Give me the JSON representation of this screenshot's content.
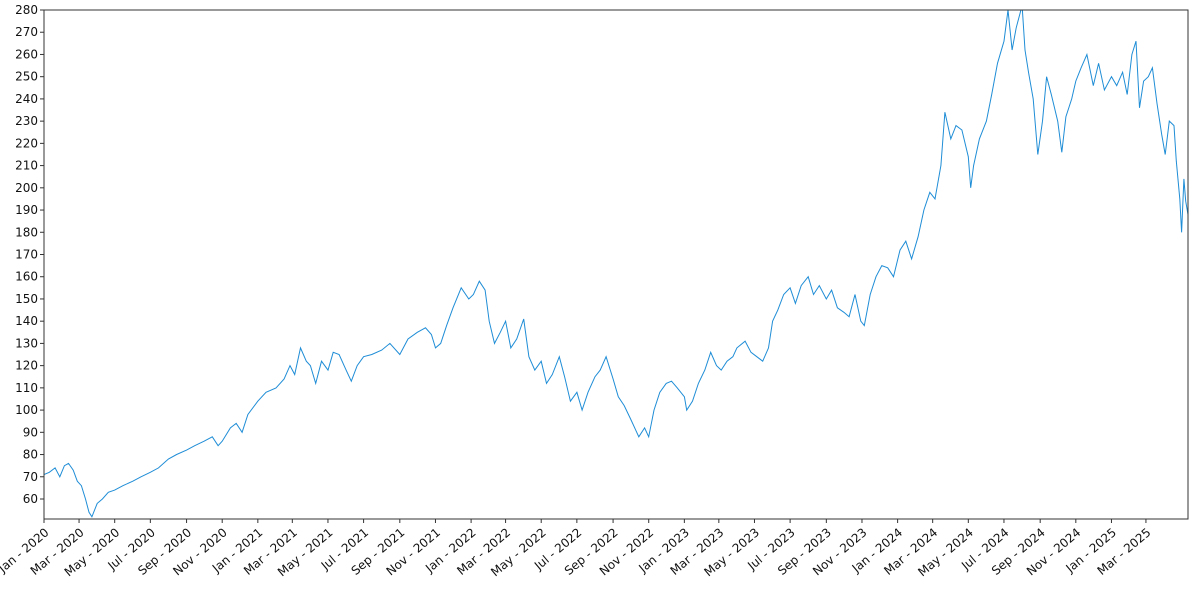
{
  "chart_data": {
    "type": "line",
    "title": "",
    "xlabel": "",
    "ylabel": "",
    "ylim": [
      51,
      280
    ],
    "yticks": [
      60,
      70,
      80,
      90,
      100,
      110,
      120,
      130,
      140,
      150,
      160,
      170,
      180,
      190,
      200,
      210,
      220,
      230,
      240,
      250,
      260,
      270,
      280
    ],
    "xlim": [
      "2020-01-01",
      "2025-05-12"
    ],
    "xticks": [
      {
        "date": "2020-01-01",
        "label": "Jan - 2020"
      },
      {
        "date": "2020-03-01",
        "label": "Mar - 2020"
      },
      {
        "date": "2020-05-01",
        "label": "May - 2020"
      },
      {
        "date": "2020-07-01",
        "label": "Jul - 2020"
      },
      {
        "date": "2020-09-01",
        "label": "Sep - 2020"
      },
      {
        "date": "2020-11-01",
        "label": "Nov - 2020"
      },
      {
        "date": "2021-01-01",
        "label": "Jan - 2021"
      },
      {
        "date": "2021-03-01",
        "label": "Mar - 2021"
      },
      {
        "date": "2021-05-01",
        "label": "May - 2021"
      },
      {
        "date": "2021-07-01",
        "label": "Jul - 2021"
      },
      {
        "date": "2021-09-01",
        "label": "Sep - 2021"
      },
      {
        "date": "2021-11-01",
        "label": "Nov - 2021"
      },
      {
        "date": "2022-01-01",
        "label": "Jan - 2022"
      },
      {
        "date": "2022-03-01",
        "label": "Mar - 2022"
      },
      {
        "date": "2022-05-01",
        "label": "May - 2022"
      },
      {
        "date": "2022-07-01",
        "label": "Jul - 2022"
      },
      {
        "date": "2022-09-01",
        "label": "Sep - 2022"
      },
      {
        "date": "2022-11-01",
        "label": "Nov - 2022"
      },
      {
        "date": "2023-01-01",
        "label": "Jan - 2023"
      },
      {
        "date": "2023-03-01",
        "label": "Mar - 2023"
      },
      {
        "date": "2023-05-01",
        "label": "May - 2023"
      },
      {
        "date": "2023-07-01",
        "label": "Jul - 2023"
      },
      {
        "date": "2023-09-01",
        "label": "Sep - 2023"
      },
      {
        "date": "2023-11-01",
        "label": "Nov - 2023"
      },
      {
        "date": "2024-01-01",
        "label": "Jan - 2024"
      },
      {
        "date": "2024-03-01",
        "label": "Mar - 2024"
      },
      {
        "date": "2024-05-01",
        "label": "May - 2024"
      },
      {
        "date": "2024-07-01",
        "label": "Jul - 2024"
      },
      {
        "date": "2024-09-01",
        "label": "Sep - 2024"
      },
      {
        "date": "2024-11-01",
        "label": "Nov - 2024"
      },
      {
        "date": "2025-01-01",
        "label": "Jan - 2025"
      },
      {
        "date": "2025-03-01",
        "label": "Mar - 2025"
      }
    ],
    "grid": false,
    "line_color": "#1f8dd6",
    "series": [
      {
        "points": [
          [
            "2020-01-01",
            71
          ],
          [
            "2020-01-10",
            72
          ],
          [
            "2020-01-20",
            74
          ],
          [
            "2020-01-28",
            70
          ],
          [
            "2020-02-05",
            75
          ],
          [
            "2020-02-12",
            76
          ],
          [
            "2020-02-20",
            73
          ],
          [
            "2020-02-27",
            68
          ],
          [
            "2020-03-05",
            66
          ],
          [
            "2020-03-12",
            60
          ],
          [
            "2020-03-18",
            54
          ],
          [
            "2020-03-23",
            52
          ],
          [
            "2020-04-01",
            58
          ],
          [
            "2020-04-10",
            60
          ],
          [
            "2020-04-20",
            63
          ],
          [
            "2020-05-01",
            64
          ],
          [
            "2020-05-15",
            66
          ],
          [
            "2020-06-01",
            68
          ],
          [
            "2020-06-15",
            70
          ],
          [
            "2020-07-01",
            72
          ],
          [
            "2020-07-15",
            74
          ],
          [
            "2020-08-01",
            78
          ],
          [
            "2020-08-15",
            80
          ],
          [
            "2020-09-01",
            82
          ],
          [
            "2020-09-15",
            84
          ],
          [
            "2020-10-01",
            86
          ],
          [
            "2020-10-15",
            88
          ],
          [
            "2020-10-25",
            84
          ],
          [
            "2020-11-01",
            86
          ],
          [
            "2020-11-15",
            92
          ],
          [
            "2020-11-25",
            94
          ],
          [
            "2020-12-05",
            90
          ],
          [
            "2020-12-15",
            98
          ],
          [
            "2021-01-01",
            104
          ],
          [
            "2021-01-15",
            108
          ],
          [
            "2021-02-01",
            110
          ],
          [
            "2021-02-15",
            114
          ],
          [
            "2021-02-25",
            120
          ],
          [
            "2021-03-05",
            116
          ],
          [
            "2021-03-15",
            128
          ],
          [
            "2021-03-25",
            122
          ],
          [
            "2021-04-01",
            120
          ],
          [
            "2021-04-10",
            112
          ],
          [
            "2021-04-20",
            122
          ],
          [
            "2021-05-01",
            118
          ],
          [
            "2021-05-10",
            126
          ],
          [
            "2021-05-20",
            125
          ],
          [
            "2021-06-01",
            118
          ],
          [
            "2021-06-10",
            113
          ],
          [
            "2021-06-20",
            120
          ],
          [
            "2021-07-01",
            124
          ],
          [
            "2021-07-15",
            125
          ],
          [
            "2021-08-01",
            127
          ],
          [
            "2021-08-15",
            130
          ],
          [
            "2021-09-01",
            125
          ],
          [
            "2021-09-15",
            132
          ],
          [
            "2021-10-01",
            135
          ],
          [
            "2021-10-15",
            137
          ],
          [
            "2021-10-25",
            134
          ],
          [
            "2021-11-01",
            128
          ],
          [
            "2021-11-10",
            130
          ],
          [
            "2021-11-20",
            138
          ],
          [
            "2021-12-01",
            146
          ],
          [
            "2021-12-15",
            155
          ],
          [
            "2021-12-28",
            150
          ],
          [
            "2022-01-05",
            152
          ],
          [
            "2022-01-15",
            158
          ],
          [
            "2022-01-25",
            154
          ],
          [
            "2022-02-01",
            140
          ],
          [
            "2022-02-10",
            130
          ],
          [
            "2022-02-20",
            135
          ],
          [
            "2022-03-01",
            140
          ],
          [
            "2022-03-10",
            128
          ],
          [
            "2022-03-20",
            132
          ],
          [
            "2022-04-01",
            141
          ],
          [
            "2022-04-10",
            124
          ],
          [
            "2022-04-20",
            118
          ],
          [
            "2022-05-01",
            122
          ],
          [
            "2022-05-10",
            112
          ],
          [
            "2022-05-20",
            116
          ],
          [
            "2022-06-01",
            124
          ],
          [
            "2022-06-10",
            115
          ],
          [
            "2022-06-20",
            104
          ],
          [
            "2022-07-01",
            108
          ],
          [
            "2022-07-10",
            100
          ],
          [
            "2022-07-20",
            108
          ],
          [
            "2022-08-01",
            115
          ],
          [
            "2022-08-10",
            118
          ],
          [
            "2022-08-20",
            124
          ],
          [
            "2022-09-01",
            114
          ],
          [
            "2022-09-10",
            106
          ],
          [
            "2022-09-20",
            102
          ],
          [
            "2022-10-01",
            96
          ],
          [
            "2022-10-15",
            88
          ],
          [
            "2022-10-25",
            92
          ],
          [
            "2022-11-01",
            88
          ],
          [
            "2022-11-10",
            100
          ],
          [
            "2022-11-20",
            108
          ],
          [
            "2022-12-01",
            112
          ],
          [
            "2022-12-10",
            113
          ],
          [
            "2022-12-20",
            110
          ],
          [
            "2023-01-01",
            106
          ],
          [
            "2023-01-05",
            100
          ],
          [
            "2023-01-15",
            104
          ],
          [
            "2023-01-25",
            112
          ],
          [
            "2023-02-05",
            118
          ],
          [
            "2023-02-15",
            126
          ],
          [
            "2023-02-25",
            120
          ],
          [
            "2023-03-05",
            118
          ],
          [
            "2023-03-15",
            122
          ],
          [
            "2023-03-25",
            124
          ],
          [
            "2023-04-01",
            128
          ],
          [
            "2023-04-15",
            131
          ],
          [
            "2023-04-25",
            126
          ],
          [
            "2023-05-05",
            124
          ],
          [
            "2023-05-15",
            122
          ],
          [
            "2023-05-25",
            128
          ],
          [
            "2023-06-01",
            140
          ],
          [
            "2023-06-10",
            145
          ],
          [
            "2023-06-20",
            152
          ],
          [
            "2023-07-01",
            155
          ],
          [
            "2023-07-10",
            148
          ],
          [
            "2023-07-20",
            156
          ],
          [
            "2023-08-01",
            160
          ],
          [
            "2023-08-10",
            152
          ],
          [
            "2023-08-20",
            156
          ],
          [
            "2023-09-01",
            150
          ],
          [
            "2023-09-10",
            154
          ],
          [
            "2023-09-20",
            146
          ],
          [
            "2023-10-01",
            144
          ],
          [
            "2023-10-10",
            142
          ],
          [
            "2023-10-20",
            152
          ],
          [
            "2023-10-30",
            140
          ],
          [
            "2023-11-05",
            138
          ],
          [
            "2023-11-15",
            152
          ],
          [
            "2023-11-25",
            160
          ],
          [
            "2023-12-05",
            165
          ],
          [
            "2023-12-15",
            164
          ],
          [
            "2023-12-25",
            160
          ],
          [
            "2024-01-05",
            172
          ],
          [
            "2024-01-15",
            176
          ],
          [
            "2024-01-25",
            168
          ],
          [
            "2024-02-05",
            178
          ],
          [
            "2024-02-15",
            190
          ],
          [
            "2024-02-25",
            198
          ],
          [
            "2024-03-05",
            195
          ],
          [
            "2024-03-15",
            210
          ],
          [
            "2024-03-22",
            234
          ],
          [
            "2024-04-01",
            222
          ],
          [
            "2024-04-10",
            228
          ],
          [
            "2024-04-20",
            226
          ],
          [
            "2024-05-01",
            214
          ],
          [
            "2024-05-05",
            200
          ],
          [
            "2024-05-10",
            210
          ],
          [
            "2024-05-20",
            222
          ],
          [
            "2024-06-01",
            230
          ],
          [
            "2024-06-10",
            242
          ],
          [
            "2024-06-20",
            256
          ],
          [
            "2024-07-01",
            266
          ],
          [
            "2024-07-08",
            280
          ],
          [
            "2024-07-15",
            262
          ],
          [
            "2024-07-22",
            272
          ],
          [
            "2024-08-01",
            282
          ],
          [
            "2024-08-06",
            262
          ],
          [
            "2024-08-12",
            252
          ],
          [
            "2024-08-20",
            240
          ],
          [
            "2024-08-28",
            215
          ],
          [
            "2024-09-05",
            230
          ],
          [
            "2024-09-12",
            250
          ],
          [
            "2024-09-20",
            242
          ],
          [
            "2024-10-01",
            230
          ],
          [
            "2024-10-08",
            216
          ],
          [
            "2024-10-15",
            232
          ],
          [
            "2024-10-25",
            240
          ],
          [
            "2024-11-01",
            248
          ],
          [
            "2024-11-10",
            254
          ],
          [
            "2024-11-20",
            260
          ],
          [
            "2024-12-01",
            246
          ],
          [
            "2024-12-10",
            256
          ],
          [
            "2024-12-20",
            244
          ],
          [
            "2025-01-01",
            250
          ],
          [
            "2025-01-10",
            246
          ],
          [
            "2025-01-20",
            252
          ],
          [
            "2025-01-28",
            242
          ],
          [
            "2025-02-05",
            260
          ],
          [
            "2025-02-12",
            266
          ],
          [
            "2025-02-18",
            236
          ],
          [
            "2025-02-25",
            248
          ],
          [
            "2025-03-05",
            250
          ],
          [
            "2025-03-12",
            254
          ],
          [
            "2025-03-20",
            238
          ],
          [
            "2025-03-28",
            224
          ],
          [
            "2025-04-03",
            215
          ],
          [
            "2025-04-10",
            230
          ],
          [
            "2025-04-18",
            228
          ],
          [
            "2025-04-22",
            212
          ],
          [
            "2025-04-28",
            195
          ],
          [
            "2025-05-01",
            180
          ],
          [
            "2025-05-05",
            204
          ],
          [
            "2025-05-08",
            194
          ],
          [
            "2025-05-12",
            188
          ]
        ]
      }
    ]
  }
}
